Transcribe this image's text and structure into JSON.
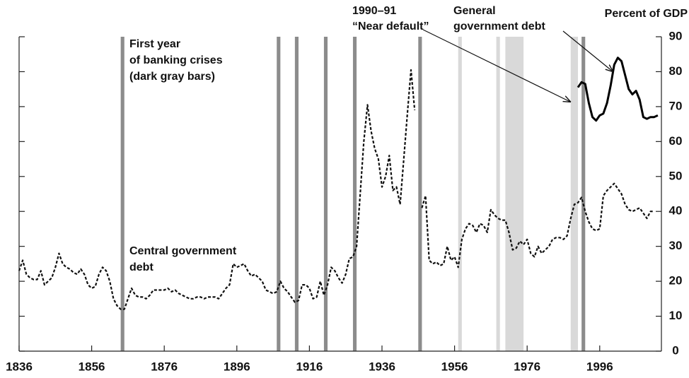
{
  "chart_data": {
    "type": "line",
    "axis_title": "Percent of GDP",
    "annotations": [
      [
        "First year",
        "of banking crises",
        "(dark gray bars)"
      ],
      [
        "1990–91",
        "“Near default”"
      ],
      [
        "General",
        "government debt"
      ],
      [
        "Central government",
        "debt"
      ]
    ],
    "xlim": [
      1836,
      2013
    ],
    "xticks": [
      1836,
      1856,
      1876,
      1896,
      1916,
      1936,
      1956,
      1976,
      1996
    ],
    "ylim": [
      0,
      90
    ],
    "yticks": [
      0,
      10,
      20,
      30,
      40,
      50,
      60,
      70,
      80,
      90
    ],
    "dark_bars": {
      "color": "#8c8c8c",
      "years": [
        1864,
        1907,
        1912,
        1920,
        1928,
        1946,
        1991
      ]
    },
    "light_bars": {
      "color": "#d9d9d9",
      "ranges": [
        [
          1957,
          1958
        ],
        [
          1967.5,
          1968.5
        ],
        [
          1970,
          1975
        ],
        [
          1988,
          1990
        ]
      ]
    },
    "series": [
      {
        "name": "Central government debt",
        "color": "#111111",
        "dash": true,
        "x": [
          1836,
          1837,
          1838,
          1839,
          1840,
          1841,
          1842,
          1843,
          1844,
          1845,
          1846,
          1847,
          1848,
          1849,
          1850,
          1851,
          1852,
          1853,
          1854,
          1855,
          1856,
          1857,
          1858,
          1859,
          1860,
          1861,
          1862,
          1863,
          1864,
          1865,
          1866,
          1867,
          1868,
          1869,
          1870,
          1871,
          1872,
          1873,
          1874,
          1875,
          1876,
          1877,
          1878,
          1879,
          1880,
          1881,
          1882,
          1883,
          1884,
          1885,
          1886,
          1887,
          1888,
          1889,
          1890,
          1891,
          1892,
          1893,
          1894,
          1895,
          1896,
          1897,
          1898,
          1899,
          1900,
          1901,
          1902,
          1903,
          1904,
          1905,
          1906,
          1907,
          1908,
          1909,
          1910,
          1911,
          1912,
          1913,
          1914,
          1915,
          1916,
          1917,
          1918,
          1919,
          1920,
          1921,
          1922,
          1923,
          1924,
          1925,
          1926,
          1927,
          1928,
          1929,
          1930,
          1931,
          1932,
          1933,
          1934,
          1935,
          1936,
          1937,
          1938,
          1939,
          1940,
          1941,
          1942,
          1943,
          1944,
          1945,
          1946,
          1947,
          1948,
          1949,
          1950,
          1951,
          1952,
          1953,
          1954,
          1955,
          1956,
          1957,
          1958,
          1959,
          1960,
          1961,
          1962,
          1963,
          1964,
          1965,
          1966,
          1967,
          1968,
          1969,
          1970,
          1971,
          1972,
          1973,
          1974,
          1975,
          1976,
          1977,
          1978,
          1979,
          1980,
          1981,
          1982,
          1983,
          1984,
          1985,
          1986,
          1987,
          1988,
          1989,
          1990,
          1991,
          1992,
          1993,
          1994,
          1995,
          1996,
          1997,
          1998,
          1999,
          2000,
          2001,
          2002,
          2003,
          2004,
          2005,
          2006,
          2007,
          2008,
          2009,
          2010,
          2011
        ],
        "values": [
          23,
          26,
          22,
          21,
          20.5,
          20.5,
          23,
          19,
          20,
          21,
          24,
          28,
          25,
          24,
          23.5,
          22.5,
          22,
          23.5,
          22,
          19,
          18,
          18.5,
          22,
          24,
          23,
          20,
          15,
          13,
          12,
          12,
          15,
          18,
          16,
          15.5,
          15.5,
          15,
          16,
          17.5,
          17.5,
          17.5,
          17.5,
          18,
          17,
          17.5,
          16.5,
          16,
          15.5,
          15,
          15,
          15.5,
          15.5,
          15,
          15.5,
          15.5,
          15.5,
          15,
          16.5,
          18,
          19,
          25,
          24,
          24.5,
          25,
          23,
          21.5,
          22,
          21,
          20,
          17.5,
          17,
          16.5,
          17,
          20,
          18,
          17,
          15.5,
          14,
          14.5,
          19,
          19,
          18,
          15,
          15.5,
          20,
          16,
          19,
          24,
          23,
          21,
          19.5,
          22,
          26.5,
          27,
          30,
          45,
          60,
          70.5,
          63,
          58,
          55,
          47,
          50,
          56,
          46,
          47,
          42,
          55,
          68,
          80.5,
          69,
          null,
          41,
          44.5,
          26,
          25,
          25.5,
          24.5,
          25,
          30,
          26,
          27,
          24,
          32,
          35,
          36.5,
          36,
          34,
          36.5,
          36,
          34,
          40.5,
          39,
          38,
          37.5,
          37.5,
          34,
          29,
          29.5,
          31.5,
          30.5,
          32,
          28,
          27,
          30,
          28,
          29,
          30,
          32,
          32.5,
          32.5,
          32,
          33,
          38,
          42,
          42.5,
          44,
          40,
          37,
          35,
          34.5,
          35,
          44.5,
          46,
          47,
          48,
          46.5,
          45,
          42,
          40.5,
          40,
          40.5,
          41,
          39.5,
          38,
          40,
          40
        ]
      },
      {
        "name": "General government debt",
        "color": "#000000",
        "dash": false,
        "x": [
          1990,
          1991,
          1992,
          1993,
          1994,
          1995,
          1996,
          1997,
          1998,
          1999,
          2000,
          2001,
          2002,
          2003,
          2004,
          2005,
          2006,
          2007,
          2008,
          2009,
          2010,
          2011,
          2012
        ],
        "values": [
          75.5,
          77,
          76.5,
          71,
          67,
          66,
          67.5,
          68,
          71,
          76,
          82,
          84,
          83,
          79,
          75,
          73.5,
          74.5,
          72,
          67,
          66.5,
          67,
          67,
          67.5
        ]
      }
    ]
  }
}
